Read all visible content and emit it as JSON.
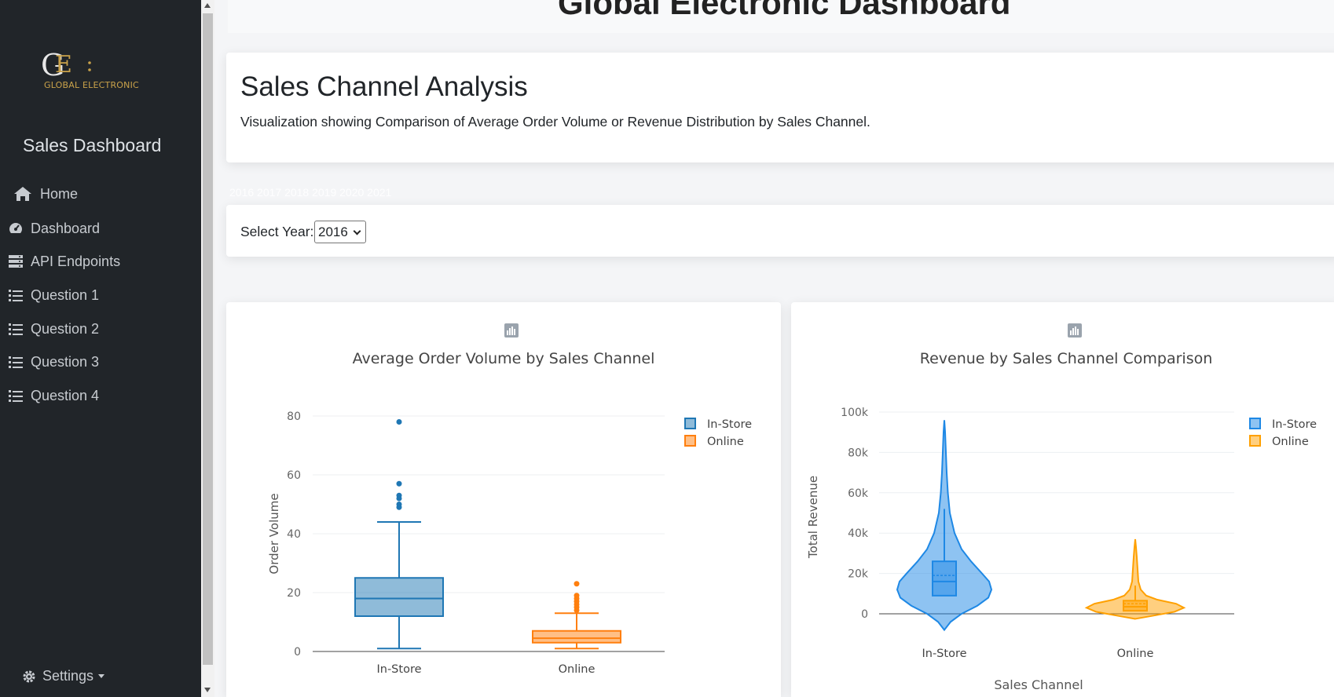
{
  "sidebar": {
    "brand_text": "GLOBAL ELECTRONIC",
    "title": "Sales Dashboard",
    "nav": [
      {
        "label": "Home",
        "icon": "home-icon"
      },
      {
        "label": "Dashboard",
        "icon": "gauge-icon"
      },
      {
        "label": "API Endpoints",
        "icon": "server-icon"
      },
      {
        "label": "Question 1",
        "icon": "list-icon"
      },
      {
        "label": "Question 2",
        "icon": "list-icon"
      },
      {
        "label": "Question 3",
        "icon": "list-icon"
      },
      {
        "label": "Question 4",
        "icon": "list-icon"
      }
    ],
    "settings_label": "Settings"
  },
  "header": {
    "title": "Global Electronic Dashboard"
  },
  "section": {
    "title": "Sales Channel Analysis",
    "description": "Visualization showing Comparison of Average Order Volume or Revenue Distribution by Sales Channel."
  },
  "year_filter": {
    "ghost_years": "2016 2017 2018 2019 2020 2021",
    "label": "Select Year:",
    "selected": "2016"
  },
  "colors": {
    "instore": "#1f77b4",
    "online": "#ff7f0e",
    "violin_instore": "#1e88e5",
    "violin_online": "#ffa000"
  },
  "chart_data": [
    {
      "type": "box",
      "title": "Average Order Volume by Sales Channel",
      "xlabel": "",
      "ylabel": "Order Volume",
      "categories": [
        "In-Store",
        "Online"
      ],
      "ylim": [
        0,
        80
      ],
      "yticks": [
        0,
        20,
        40,
        60,
        80
      ],
      "legend": [
        "In-Store",
        "Online"
      ],
      "legend_position": "top-right",
      "grid": true,
      "series": [
        {
          "name": "In-Store",
          "min": 1,
          "q1": 12,
          "median": 18,
          "q3": 25,
          "max": 44,
          "outliers": [
            49,
            50,
            52,
            53,
            57,
            78
          ]
        },
        {
          "name": "Online",
          "min": 1,
          "q1": 3,
          "median": 4.5,
          "q3": 7,
          "max": 13,
          "outliers": [
            14,
            15,
            16,
            17,
            18,
            19,
            23
          ]
        }
      ]
    },
    {
      "type": "violin",
      "title": "Revenue by Sales Channel Comparison",
      "xlabel": "Sales Channel",
      "ylabel": "Total Revenue",
      "categories": [
        "In-Store",
        "Online"
      ],
      "ylim": [
        -10000,
        100000
      ],
      "yticks": [
        0,
        20000,
        40000,
        60000,
        80000,
        100000
      ],
      "ytick_labels": [
        "0",
        "20k",
        "40k",
        "60k",
        "80k",
        "100k"
      ],
      "legend": [
        "In-Store",
        "Online"
      ],
      "legend_position": "top-right",
      "grid": true,
      "series": [
        {
          "name": "In-Store",
          "min": -8000,
          "q1": 9000,
          "median": 16000,
          "mean": 19000,
          "q3": 26000,
          "max": 96000,
          "upper_fence": 52000
        },
        {
          "name": "Online",
          "min": -2500,
          "q1": 1500,
          "median": 3500,
          "mean": 5000,
          "q3": 6500,
          "max": 37000,
          "upper_fence": 14000
        }
      ]
    }
  ]
}
